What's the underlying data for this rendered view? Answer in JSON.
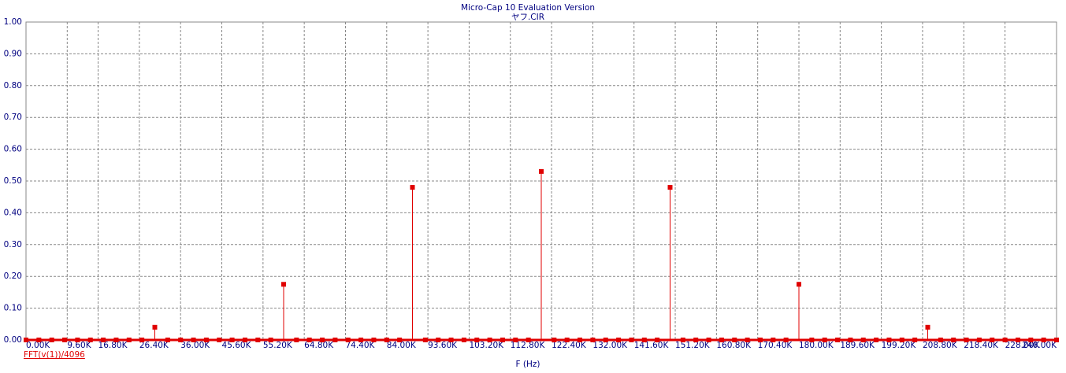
{
  "chart_data": {
    "type": "stem",
    "title": "Micro-Cap 10 Evaluation Version",
    "subtitle": "ヤフ.CIR",
    "x_label": "F (Hz)",
    "xlim": [
      0,
      240000
    ],
    "ylim": [
      0,
      1
    ],
    "xticks": [
      {
        "value": 0,
        "label": "0.00K"
      },
      {
        "value": 9600,
        "label": "9.60K"
      },
      {
        "value": 16800,
        "label": "16.80K"
      },
      {
        "value": 26400,
        "label": "26.40K"
      },
      {
        "value": 36000,
        "label": "36.00K"
      },
      {
        "value": 45600,
        "label": "45.60K"
      },
      {
        "value": 55200,
        "label": "55.20K"
      },
      {
        "value": 64800,
        "label": "64.80K"
      },
      {
        "value": 74400,
        "label": "74.40K"
      },
      {
        "value": 84000,
        "label": "84.00K"
      },
      {
        "value": 93600,
        "label": "93.60K"
      },
      {
        "value": 103200,
        "label": "103.20K"
      },
      {
        "value": 112800,
        "label": "112.80K"
      },
      {
        "value": 122400,
        "label": "122.40K"
      },
      {
        "value": 132000,
        "label": "132.00K"
      },
      {
        "value": 141600,
        "label": "141.60K"
      },
      {
        "value": 151200,
        "label": "151.20K"
      },
      {
        "value": 160800,
        "label": "160.80K"
      },
      {
        "value": 170400,
        "label": "170.40K"
      },
      {
        "value": 180000,
        "label": "180.00K"
      },
      {
        "value": 189600,
        "label": "189.60K"
      },
      {
        "value": 199200,
        "label": "199.20K"
      },
      {
        "value": 208800,
        "label": "208.80K"
      },
      {
        "value": 218400,
        "label": "218.40K"
      },
      {
        "value": 228000,
        "label": "228.00K"
      },
      {
        "value": 240000,
        "label": "240.00K"
      }
    ],
    "yticks": [
      {
        "value": 0,
        "label": "0.00"
      },
      {
        "value": 0.1,
        "label": "0.10"
      },
      {
        "value": 0.2,
        "label": "0.20"
      },
      {
        "value": 0.3,
        "label": "0.30"
      },
      {
        "value": 0.4,
        "label": "0.40"
      },
      {
        "value": 0.5,
        "label": "0.50"
      },
      {
        "value": 0.6,
        "label": "0.60"
      },
      {
        "value": 0.7,
        "label": "0.70"
      },
      {
        "value": 0.8,
        "label": "0.80"
      },
      {
        "value": 0.9,
        "label": "0.90"
      },
      {
        "value": 1,
        "label": "1.00"
      }
    ],
    "grid": true,
    "x": [
      0,
      3000,
      6000,
      9000,
      12000,
      15000,
      18000,
      21000,
      24000,
      27000,
      30000,
      33000,
      36000,
      39000,
      42000,
      45000,
      48000,
      51000,
      54000,
      57000,
      60000,
      63000,
      66000,
      69000,
      72000,
      75000,
      78000,
      81000,
      84000,
      87000,
      90000,
      93000,
      96000,
      99000,
      102000,
      105000,
      108000,
      111000,
      114000,
      117000,
      120000,
      123000,
      126000,
      129000,
      132000,
      135000,
      138000,
      141000,
      144000,
      147000,
      150000,
      153000,
      156000,
      159000,
      162000,
      165000,
      168000,
      171000,
      174000,
      177000,
      180000,
      183000,
      186000,
      189000,
      192000,
      195000,
      198000,
      201000,
      204000,
      207000,
      210000,
      213000,
      216000,
      219000,
      222000,
      225000,
      228000,
      231000,
      234000,
      237000,
      240000
    ],
    "series": [
      {
        "name": "FFT(v(1))/4096",
        "color": "#e00000",
        "values": [
          0,
          0,
          0,
          0,
          0,
          0,
          0,
          0,
          0,
          0,
          0.04,
          0,
          0,
          0,
          0,
          0,
          0,
          0,
          0,
          0,
          0.175,
          0,
          0,
          0,
          0,
          0,
          0,
          0,
          0,
          0,
          0.48,
          0,
          0,
          0,
          0,
          0,
          0,
          0,
          0,
          0,
          0.53,
          0,
          0,
          0,
          0,
          0,
          0,
          0,
          0,
          0,
          0.48,
          0,
          0,
          0,
          0,
          0,
          0,
          0,
          0,
          0,
          0.175,
          0,
          0,
          0,
          0,
          0,
          0,
          0,
          0,
          0,
          0.04,
          0,
          0,
          0,
          0,
          0,
          0,
          0,
          0,
          0,
          0
        ]
      }
    ]
  }
}
